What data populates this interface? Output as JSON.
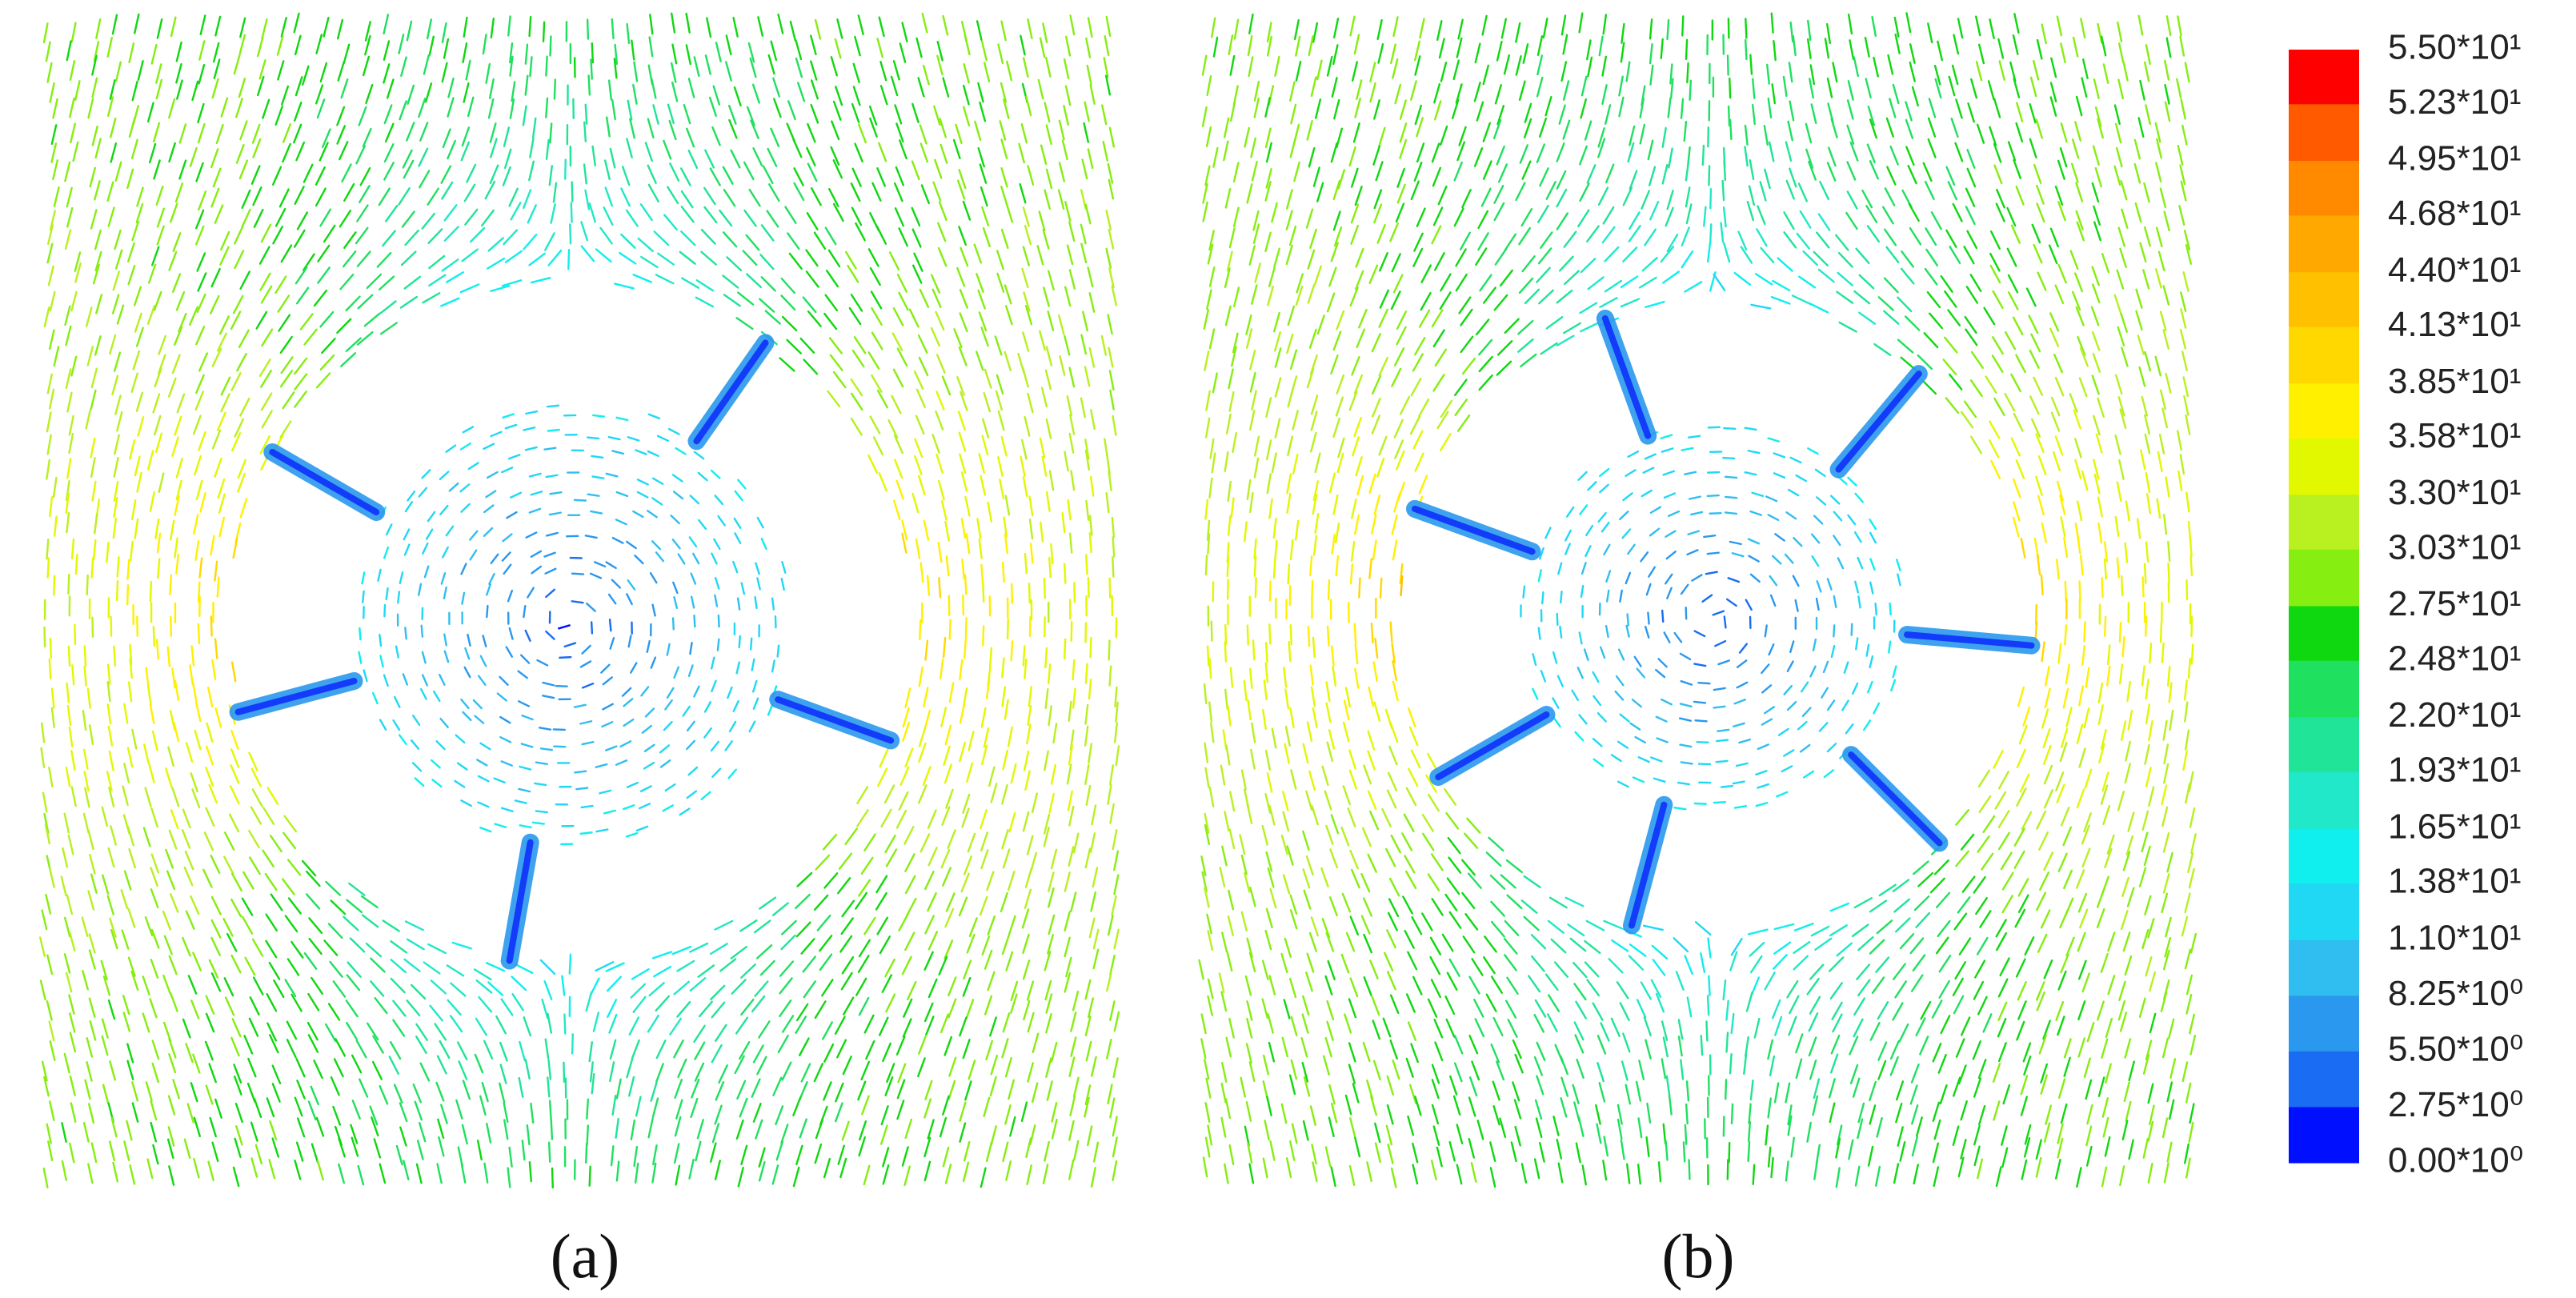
{
  "panels": [
    {
      "label": "(a)"
    },
    {
      "label": "(b)"
    }
  ],
  "colorbar": {
    "ticks": [
      {
        "value": 55,
        "label": "5.50*10¹"
      },
      {
        "value": 52.3,
        "label": "5.23*10¹"
      },
      {
        "value": 49.5,
        "label": "4.95*10¹"
      },
      {
        "value": 46.8,
        "label": "4.68*10¹"
      },
      {
        "value": 44,
        "label": "4.40*10¹"
      },
      {
        "value": 41.3,
        "label": "4.13*10¹"
      },
      {
        "value": 38.5,
        "label": "3.85*10¹"
      },
      {
        "value": 35.8,
        "label": "3.58*10¹"
      },
      {
        "value": 33,
        "label": "3.30*10¹"
      },
      {
        "value": 30.3,
        "label": "3.03*10¹"
      },
      {
        "value": 27.5,
        "label": "2.75*10¹"
      },
      {
        "value": 24.8,
        "label": "2.48*10¹"
      },
      {
        "value": 22,
        "label": "2.20*10¹"
      },
      {
        "value": 19.3,
        "label": "1.93*10¹"
      },
      {
        "value": 16.5,
        "label": "1.65*10¹"
      },
      {
        "value": 13.8,
        "label": "1.38*10¹"
      },
      {
        "value": 11,
        "label": "1.10*10¹"
      },
      {
        "value": 8.25,
        "label": "8.25*10⁰"
      },
      {
        "value": 5.5,
        "label": "5.50*10⁰"
      },
      {
        "value": 2.75,
        "label": "2.75*10⁰"
      },
      {
        "value": 0,
        "label": "0.00*10⁰"
      }
    ],
    "colors": [
      "#ff0000",
      "#ff5a00",
      "#ff8a00",
      "#ffa800",
      "#ffc000",
      "#ffd800",
      "#fff000",
      "#e2f800",
      "#b8f020",
      "#86ee10",
      "#10d810",
      "#20e060",
      "#20e498",
      "#20e8c8",
      "#10eeee",
      "#20d8f4",
      "#30bef0",
      "#2a98ee",
      "#1a6cf2",
      "#0010ff"
    ]
  }
}
